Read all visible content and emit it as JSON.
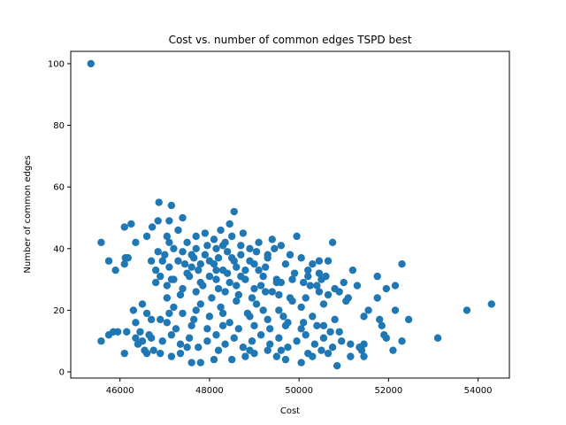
{
  "chart_data": {
    "type": "scatter",
    "title": "Cost vs. number of common edges TSPD best",
    "xlabel": "Cost",
    "ylabel": "Number of common edges",
    "xlim": [
      44900,
      54700
    ],
    "ylim": [
      -2,
      104
    ],
    "xticks": [
      46000,
      48000,
      50000,
      52000,
      54000
    ],
    "yticks": [
      0,
      20,
      40,
      60,
      80,
      100
    ],
    "grid": false,
    "color": "#1f77b4",
    "points": [
      [
        45350,
        100
      ],
      [
        46870,
        55
      ],
      [
        47150,
        54
      ],
      [
        48550,
        52
      ],
      [
        47400,
        50
      ],
      [
        46850,
        49
      ],
      [
        46250,
        48
      ],
      [
        47100,
        49
      ],
      [
        46100,
        47
      ],
      [
        46720,
        47
      ],
      [
        45580,
        42
      ],
      [
        46350,
        42
      ],
      [
        45750,
        36
      ],
      [
        45900,
        33
      ],
      [
        46120,
        37
      ],
      [
        46100,
        35
      ],
      [
        46180,
        37
      ],
      [
        46700,
        36
      ],
      [
        46850,
        39
      ],
      [
        46800,
        33
      ],
      [
        47000,
        38
      ],
      [
        47100,
        34
      ],
      [
        47300,
        36
      ],
      [
        47500,
        32
      ],
      [
        47700,
        40
      ],
      [
        47900,
        38
      ],
      [
        48100,
        35
      ],
      [
        48300,
        33
      ],
      [
        48500,
        37
      ],
      [
        48700,
        31
      ],
      [
        48900,
        36
      ],
      [
        49100,
        33
      ],
      [
        49300,
        38
      ],
      [
        49500,
        30
      ],
      [
        49700,
        35
      ],
      [
        49900,
        32
      ],
      [
        50100,
        29
      ],
      [
        50200,
        33
      ],
      [
        50400,
        28
      ],
      [
        50600,
        31
      ],
      [
        50800,
        27
      ],
      [
        51000,
        29
      ],
      [
        51100,
        24
      ],
      [
        47200,
        30
      ],
      [
        47400,
        27
      ],
      [
        47600,
        34
      ],
      [
        47800,
        29
      ],
      [
        48000,
        31
      ],
      [
        48200,
        27
      ],
      [
        48400,
        32
      ],
      [
        48600,
        28
      ],
      [
        48800,
        33
      ],
      [
        49000,
        27
      ],
      [
        49200,
        31
      ],
      [
        49400,
        26
      ],
      [
        49600,
        29
      ],
      [
        49800,
        24
      ],
      [
        47500,
        42
      ],
      [
        47700,
        44
      ],
      [
        47900,
        45
      ],
      [
        48100,
        43
      ],
      [
        48300,
        41
      ],
      [
        48500,
        44
      ],
      [
        47300,
        46
      ],
      [
        47050,
        44
      ],
      [
        48700,
        41
      ],
      [
        48900,
        40
      ],
      [
        49100,
        42
      ],
      [
        49400,
        43
      ],
      [
        49600,
        41
      ],
      [
        49950,
        44
      ],
      [
        50050,
        37
      ],
      [
        50300,
        35
      ],
      [
        50450,
        36
      ],
      [
        50750,
        42
      ],
      [
        51200,
        33
      ],
      [
        50900,
        26
      ],
      [
        51300,
        28
      ],
      [
        51750,
        31
      ],
      [
        52150,
        28
      ],
      [
        52300,
        35
      ],
      [
        51950,
        27
      ],
      [
        51550,
        20
      ],
      [
        51750,
        24
      ],
      [
        51450,
        18
      ],
      [
        52150,
        20
      ],
      [
        49300,
        37
      ],
      [
        49000,
        35
      ],
      [
        48700,
        38
      ],
      [
        48400,
        39
      ],
      [
        48200,
        37
      ],
      [
        48000,
        36
      ],
      [
        47800,
        35
      ],
      [
        47600,
        38
      ],
      [
        47400,
        39
      ],
      [
        47200,
        40
      ],
      [
        46950,
        36
      ],
      [
        46600,
        44
      ],
      [
        47100,
        42
      ],
      [
        48250,
        46
      ],
      [
        48450,
        48
      ],
      [
        48750,
        45
      ],
      [
        49450,
        40
      ],
      [
        49800,
        38
      ],
      [
        50500,
        30
      ],
      [
        50650,
        25
      ],
      [
        51050,
        23
      ],
      [
        46300,
        20
      ],
      [
        46350,
        16
      ],
      [
        46500,
        22
      ],
      [
        46600,
        19
      ],
      [
        46900,
        17
      ],
      [
        47050,
        16
      ],
      [
        47200,
        21
      ],
      [
        47400,
        19
      ],
      [
        47650,
        17
      ],
      [
        47800,
        22
      ],
      [
        48000,
        18
      ],
      [
        48250,
        21
      ],
      [
        48450,
        16
      ],
      [
        48600,
        23
      ],
      [
        48850,
        19
      ],
      [
        49050,
        22
      ],
      [
        49300,
        17
      ],
      [
        49550,
        20
      ],
      [
        49750,
        16
      ],
      [
        50050,
        21
      ],
      [
        50300,
        18
      ],
      [
        50550,
        22
      ],
      [
        50800,
        17
      ],
      [
        46450,
        13
      ],
      [
        46700,
        11
      ],
      [
        46950,
        10
      ],
      [
        47150,
        12
      ],
      [
        47350,
        9
      ],
      [
        47550,
        11
      ],
      [
        47750,
        8
      ],
      [
        47950,
        10
      ],
      [
        48150,
        12
      ],
      [
        48350,
        9
      ],
      [
        48550,
        11
      ],
      [
        48750,
        8
      ],
      [
        48950,
        10
      ],
      [
        49150,
        12
      ],
      [
        49350,
        9
      ],
      [
        49550,
        11
      ],
      [
        49750,
        8
      ],
      [
        49950,
        10
      ],
      [
        50150,
        12
      ],
      [
        50350,
        9
      ],
      [
        50550,
        11
      ],
      [
        50750,
        8
      ],
      [
        50950,
        10
      ],
      [
        51150,
        9
      ],
      [
        51350,
        8
      ],
      [
        51450,
        5
      ],
      [
        51400,
        7
      ],
      [
        46350,
        11
      ],
      [
        46500,
        10
      ],
      [
        46650,
        12
      ],
      [
        45580,
        10
      ],
      [
        45750,
        12
      ],
      [
        45850,
        13
      ],
      [
        45950,
        13
      ],
      [
        46150,
        13
      ],
      [
        46100,
        6
      ],
      [
        46550,
        7
      ],
      [
        46600,
        6
      ],
      [
        46900,
        6
      ],
      [
        47150,
        5
      ],
      [
        47350,
        6
      ],
      [
        47600,
        3
      ],
      [
        47800,
        3
      ],
      [
        48100,
        4
      ],
      [
        48500,
        4
      ],
      [
        48800,
        5
      ],
      [
        49000,
        6
      ],
      [
        49300,
        7
      ],
      [
        49500,
        5
      ],
      [
        49700,
        4
      ],
      [
        50050,
        3
      ],
      [
        50300,
        5
      ],
      [
        50500,
        7
      ],
      [
        50850,
        2
      ],
      [
        51150,
        5
      ],
      [
        51450,
        9
      ],
      [
        51800,
        17
      ],
      [
        51900,
        12
      ],
      [
        51950,
        11
      ],
      [
        52100,
        7
      ],
      [
        52300,
        10
      ],
      [
        52450,
        17
      ],
      [
        51850,
        15
      ],
      [
        53100,
        11
      ],
      [
        53750,
        20
      ],
      [
        54300,
        22
      ],
      [
        47050,
        24
      ],
      [
        47350,
        25
      ],
      [
        47700,
        26
      ],
      [
        48050,
        24
      ],
      [
        48350,
        26
      ],
      [
        48650,
        25
      ],
      [
        48950,
        24
      ],
      [
        49250,
        26
      ],
      [
        49550,
        25
      ],
      [
        49850,
        23
      ],
      [
        50150,
        24
      ],
      [
        50450,
        26
      ],
      [
        47250,
        14
      ],
      [
        47600,
        15
      ],
      [
        47950,
        14
      ],
      [
        48300,
        15
      ],
      [
        48650,
        14
      ],
      [
        49000,
        15
      ],
      [
        49350,
        14
      ],
      [
        49700,
        15
      ],
      [
        50050,
        14
      ],
      [
        50400,
        15
      ],
      [
        50700,
        13
      ],
      [
        46800,
        29
      ],
      [
        47150,
        30
      ],
      [
        47550,
        31
      ],
      [
        47850,
        28
      ],
      [
        48150,
        30
      ],
      [
        48450,
        29
      ],
      [
        48800,
        30
      ],
      [
        49150,
        28
      ],
      [
        49500,
        29
      ],
      [
        49850,
        30
      ],
      [
        50250,
        28
      ],
      [
        50450,
        32
      ],
      [
        48150,
        40
      ],
      [
        48350,
        42
      ],
      [
        48550,
        36
      ],
      [
        48150,
        33
      ],
      [
        47750,
        33
      ],
      [
        47450,
        35
      ],
      [
        49050,
        39
      ],
      [
        49250,
        34
      ],
      [
        48600,
        34
      ],
      [
        47950,
        41
      ],
      [
        47650,
        37
      ],
      [
        46900,
        31
      ],
      [
        47050,
        28
      ],
      [
        50650,
        36
      ],
      [
        50200,
        31
      ],
      [
        48900,
        18
      ],
      [
        49200,
        20
      ],
      [
        48300,
        19
      ],
      [
        47700,
        20
      ],
      [
        47100,
        19
      ],
      [
        46700,
        17
      ],
      [
        49650,
        18
      ],
      [
        50100,
        16
      ],
      [
        50550,
        15
      ],
      [
        50900,
        13
      ],
      [
        46400,
        9
      ],
      [
        46750,
        7
      ],
      [
        47500,
        8
      ],
      [
        48200,
        7
      ],
      [
        48900,
        7
      ],
      [
        49600,
        7
      ],
      [
        50200,
        6
      ],
      [
        50650,
        6
      ]
    ]
  }
}
